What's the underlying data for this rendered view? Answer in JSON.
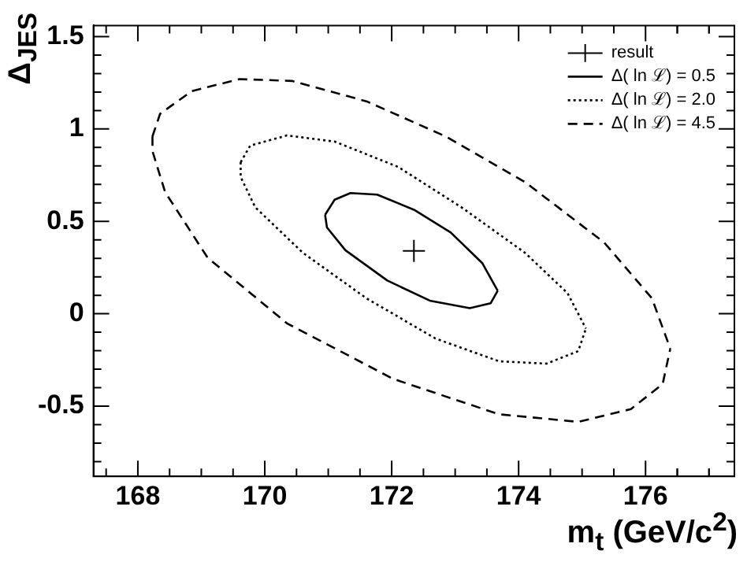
{
  "chart_data": {
    "type": "line",
    "xlabel": "m$_{t}$  (GeV/c$^{2}$)",
    "ylabel": "Δ$_{JES}$",
    "xlim": [
      167.3,
      177.4
    ],
    "xticks": [
      168,
      170,
      172,
      174,
      176
    ],
    "ylim": [
      -0.88,
      1.56
    ],
    "yticks": [
      -0.5,
      0,
      0.5,
      1,
      1.5
    ],
    "grid": false,
    "legend": "top right",
    "series": [
      {
        "name": "result",
        "type": "scatter",
        "marker": "cross",
        "color": "#000000",
        "x": [
          172.35
        ],
        "values": [
          0.34
        ]
      },
      {
        "name": "Δ( ln ℒ) = 0.5",
        "line_style": "solid",
        "marker": "none",
        "color": "#000000",
        "x": [
          170.95,
          171.1,
          171.35,
          171.77,
          172.35,
          172.93,
          173.43,
          173.67,
          null,
          170.95,
          170.98,
          171.27,
          171.93,
          172.6,
          173.23,
          173.56,
          173.67
        ],
        "values": [
          0.535,
          0.617,
          0.653,
          0.645,
          0.563,
          0.44,
          0.273,
          0.125,
          null,
          0.535,
          0.467,
          0.344,
          0.18,
          0.071,
          0.03,
          0.057,
          0.125
        ]
      },
      {
        "name": "Δ( ln ℒ) = 2.0",
        "line_style": "dotted",
        "marker": "none",
        "color": "#000000",
        "x": [
          169.62,
          169.77,
          170.35,
          171.1,
          172.1,
          173.1,
          174.1,
          174.77,
          175.06,
          null,
          169.62,
          169.62,
          169.85,
          170.6,
          171.6,
          172.69,
          173.69,
          174.44,
          174.94,
          175.06
        ],
        "values": [
          0.82,
          0.91,
          0.965,
          0.932,
          0.795,
          0.576,
          0.33,
          0.112,
          -0.08,
          null,
          0.82,
          0.74,
          0.576,
          0.33,
          0.084,
          -0.134,
          -0.257,
          -0.27,
          -0.202,
          -0.08
        ]
      },
      {
        "name": "Δ( ln ℒ) = 4.5",
        "line_style": "dashed",
        "marker": "none",
        "color": "#000000",
        "x": [
          168.23,
          168.35,
          168.85,
          169.6,
          170.43,
          171.6,
          172.85,
          174.1,
          175.35,
          176.1,
          176.39,
          null,
          168.23,
          168.23,
          168.43,
          169.1,
          170.35,
          172.02,
          173.69,
          174.94,
          175.77,
          176.27,
          176.39
        ],
        "values": [
          0.96,
          1.082,
          1.205,
          1.27,
          1.26,
          1.15,
          0.96,
          0.713,
          0.385,
          0.084,
          -0.189,
          null,
          0.96,
          0.88,
          0.658,
          0.303,
          -0.052,
          -0.352,
          -0.544,
          -0.585,
          -0.516,
          -0.38,
          -0.189
        ]
      }
    ]
  }
}
